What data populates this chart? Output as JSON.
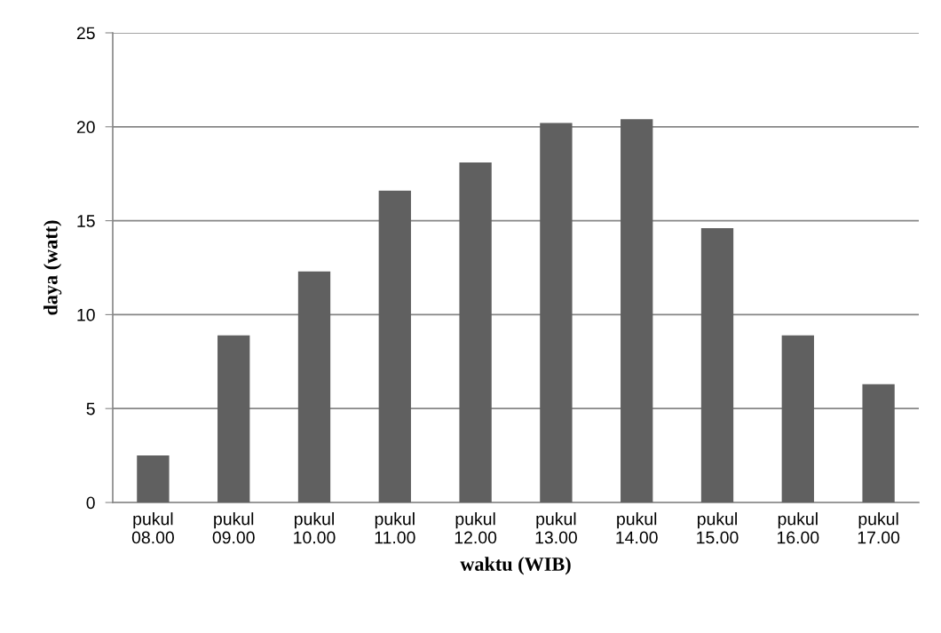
{
  "chart_data": {
    "type": "bar",
    "categories": [
      "pukul\n08.00",
      "pukul\n09.00",
      "pukul\n10.00",
      "pukul\n11.00",
      "pukul\n12.00",
      "pukul\n13.00",
      "pukul\n14.00",
      "pukul\n15.00",
      "pukul\n16.00",
      "pukul\n17.00"
    ],
    "values": [
      2.5,
      8.9,
      12.3,
      16.6,
      18.1,
      20.2,
      20.4,
      14.6,
      8.9,
      6.3
    ],
    "color": "#606060",
    "xlabel": "waktu (WIB)",
    "ylabel": "daya (watt)",
    "ylim": [
      0,
      25
    ],
    "yticks": [
      0,
      5,
      10,
      15,
      20,
      25
    ],
    "grid": "y",
    "legend": false
  }
}
